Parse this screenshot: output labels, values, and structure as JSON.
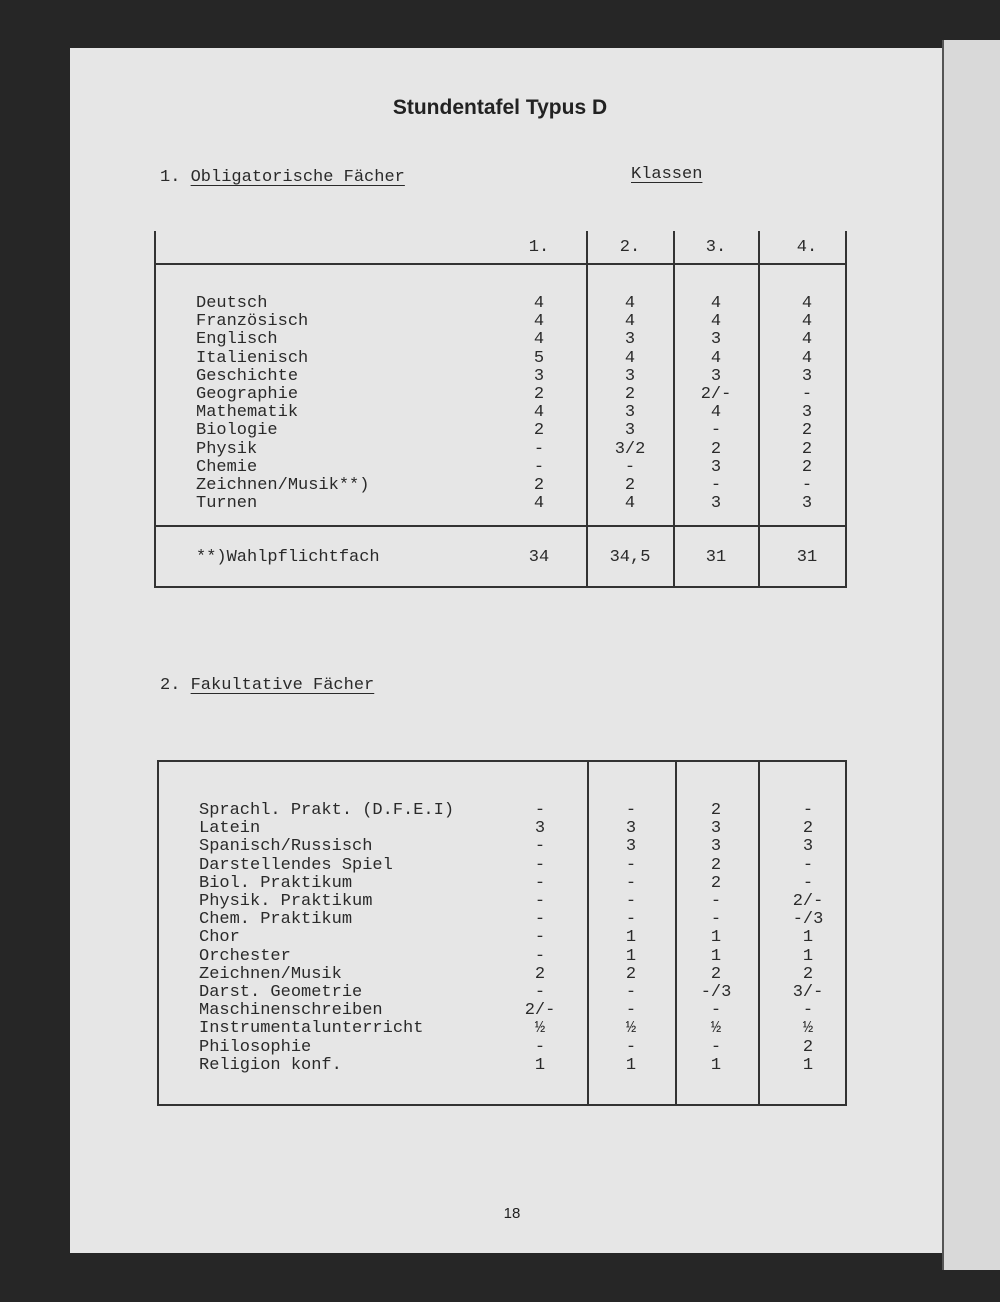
{
  "title": "Stundentafel Typus D",
  "section1": {
    "number": "1.",
    "heading": "Obligatorische Fächer",
    "classes_label": "Klassen",
    "columns": [
      "1.",
      "2.",
      "3.",
      "4."
    ],
    "rows": [
      {
        "subject": "Deutsch",
        "values": [
          "4",
          "4",
          "4",
          "4"
        ]
      },
      {
        "subject": "Französisch",
        "values": [
          "4",
          "4",
          "4",
          "4"
        ]
      },
      {
        "subject": "Englisch",
        "values": [
          "4",
          "3",
          "3",
          "4"
        ]
      },
      {
        "subject": "Italienisch",
        "values": [
          "5",
          "4",
          "4",
          "4"
        ]
      },
      {
        "subject": "Geschichte",
        "values": [
          "3",
          "3",
          "3",
          "3"
        ]
      },
      {
        "subject": "Geographie",
        "values": [
          "2",
          "2",
          "2/-",
          "-"
        ]
      },
      {
        "subject": "Mathematik",
        "values": [
          "4",
          "3",
          "4",
          "3"
        ]
      },
      {
        "subject": "Biologie",
        "values": [
          "2",
          "3",
          "-",
          "2"
        ]
      },
      {
        "subject": "Physik",
        "values": [
          "-",
          "3/2",
          "2",
          "2"
        ]
      },
      {
        "subject": "Chemie",
        "values": [
          "-",
          "-",
          "3",
          "2"
        ]
      },
      {
        "subject": "Zeichnen/Musik**)",
        "values": [
          "2",
          "2",
          "-",
          "-"
        ]
      },
      {
        "subject": "Turnen",
        "values": [
          "4",
          "4",
          "3",
          "3"
        ]
      }
    ],
    "footer": {
      "label": "**)Wahlpflichtfach",
      "values": [
        "34",
        "34,5",
        "31",
        "31"
      ]
    }
  },
  "section2": {
    "number": "2.",
    "heading": "Fakultative Fächer",
    "rows": [
      {
        "subject": "Sprachl. Prakt. (D.F.E.I)",
        "values": [
          "-",
          "-",
          "2",
          "-"
        ]
      },
      {
        "subject": "Latein",
        "values": [
          "3",
          "3",
          "3",
          "2"
        ]
      },
      {
        "subject": "Spanisch/Russisch",
        "values": [
          "-",
          "3",
          "3",
          "3"
        ]
      },
      {
        "subject": "Darstellendes Spiel",
        "values": [
          "-",
          "-",
          "2",
          "-"
        ]
      },
      {
        "subject": "Biol. Praktikum",
        "values": [
          "-",
          "-",
          "2",
          "-"
        ]
      },
      {
        "subject": "Physik. Praktikum",
        "values": [
          "-",
          "-",
          "-",
          "2/-"
        ]
      },
      {
        "subject": "Chem. Praktikum",
        "values": [
          "-",
          "-",
          "-",
          "-/3"
        ]
      },
      {
        "subject": "Chor",
        "values": [
          "-",
          "1",
          "1",
          "1"
        ]
      },
      {
        "subject": "Orchester",
        "values": [
          "-",
          "1",
          "1",
          "1"
        ]
      },
      {
        "subject": "Zeichnen/Musik",
        "values": [
          "2",
          "2",
          "2",
          "2"
        ]
      },
      {
        "subject": "Darst. Geometrie",
        "values": [
          "-",
          "-",
          "-/3",
          "3/-"
        ]
      },
      {
        "subject": "Maschinenschreiben",
        "values": [
          "2/-",
          "-",
          "-",
          "-"
        ]
      },
      {
        "subject": "Instrumentalunterricht",
        "values": [
          "½",
          "½",
          "½",
          "½"
        ]
      },
      {
        "subject": "Philosophie",
        "values": [
          "-",
          "-",
          "-",
          "2"
        ]
      },
      {
        "subject": "Religion konf.",
        "values": [
          "1",
          "1",
          "1",
          "1"
        ]
      }
    ]
  },
  "page_number": "18"
}
